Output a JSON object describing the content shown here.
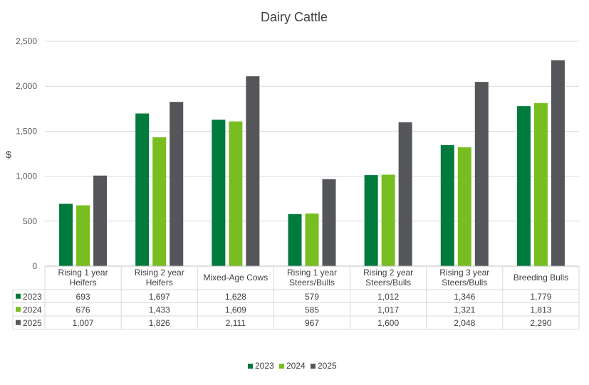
{
  "chart_data": {
    "type": "bar",
    "title": "Dairy Cattle",
    "ylabel": "$",
    "xlabel": "",
    "ylim": [
      0,
      2500
    ],
    "yticks": [
      0,
      500,
      1000,
      1500,
      2000,
      2500
    ],
    "ytick_labels": [
      "0",
      "500",
      "1,000",
      "1,500",
      "2,000",
      "2,500"
    ],
    "grid": true,
    "legend_position": "bottom",
    "data_table": true,
    "categories": [
      [
        "Rising 1 year",
        "Heifers"
      ],
      [
        "Rising 2 year",
        "Heifers"
      ],
      [
        "Mixed-Age Cows"
      ],
      [
        "Rising 1 year",
        "Steers/Bulls"
      ],
      [
        "Rising 2 year",
        "Steers/Bulls"
      ],
      [
        "Rising 3 year",
        "Steers/Bulls"
      ],
      [
        "Breeding Bulls"
      ]
    ],
    "series": [
      {
        "name": "2023",
        "color": "#007A3D",
        "values": [
          693,
          1697,
          1628,
          579,
          1012,
          1346,
          1779
        ],
        "labels": [
          "693",
          "1,697",
          "1,628",
          "579",
          "1,012",
          "1,346",
          "1,779"
        ]
      },
      {
        "name": "2024",
        "color": "#78BE20",
        "values": [
          676,
          1433,
          1609,
          585,
          1017,
          1321,
          1813
        ],
        "labels": [
          "676",
          "1,433",
          "1,609",
          "585",
          "1,017",
          "1,321",
          "1,813"
        ]
      },
      {
        "name": "2025",
        "color": "#54565A",
        "values": [
          1007,
          1826,
          2111,
          967,
          1600,
          2048,
          2290
        ],
        "labels": [
          "1,007",
          "1,826",
          "2,111",
          "967",
          "1,600",
          "2,048",
          "2,290"
        ]
      }
    ]
  }
}
